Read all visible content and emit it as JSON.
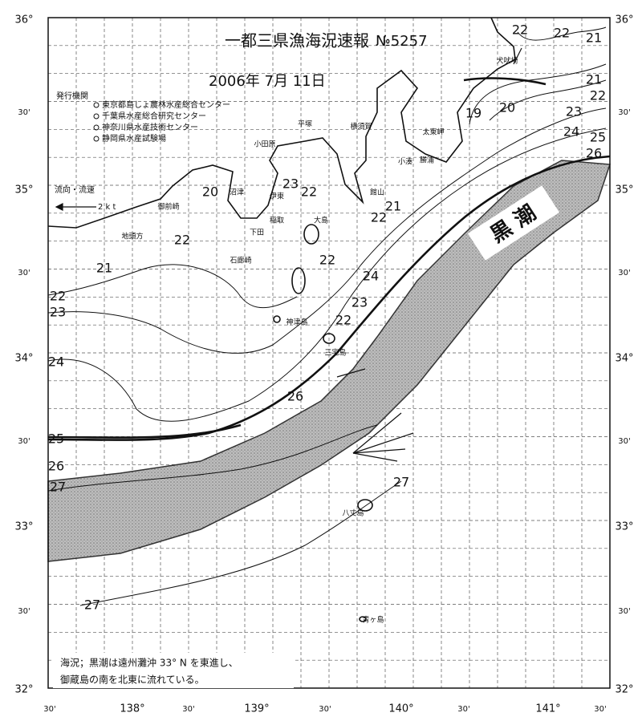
{
  "title": "一都三県漁海況速報",
  "issue_no": "№5257",
  "date": "2006年 7月 11日",
  "publisher": {
    "heading": "発行機関",
    "orgs": [
      "東京都島しょ農林水産総合センター",
      "千葉県水産総合研究センター",
      "神奈川県水産技術センター",
      "静岡県水産試験場"
    ]
  },
  "legend": {
    "label": "流向・流速",
    "speed": "2 k t"
  },
  "current_label": "黒 潮",
  "note": [
    "海況；黒潮は遠州灘沖 33° N を東進し、",
    "御蔵島の南を北東に流れている。"
  ],
  "lat_labels": [
    "36°",
    "30'",
    "35°",
    "30'",
    "34°",
    "30'",
    "33°",
    "30'",
    "32°"
  ],
  "lon_labels": [
    "30'",
    "138°",
    "30'",
    "139°",
    "30'",
    "140°",
    "30'",
    "141°",
    "30'"
  ],
  "contour_labels": [
    "22",
    "22",
    "21",
    "21",
    "22",
    "23",
    "24",
    "25",
    "26",
    "19",
    "20",
    "20",
    "23",
    "22",
    "21",
    "22",
    "22",
    "21",
    "22",
    "24",
    "22",
    "23",
    "23",
    "22",
    "24",
    "26",
    "25",
    "26",
    "27",
    "27",
    "27"
  ],
  "places": [
    "犬吠埼",
    "太東岬",
    "勝浦",
    "小湊",
    "館山",
    "平塚",
    "横須賀",
    "小田原",
    "伊東",
    "稲取",
    "下田",
    "石廊崎",
    "沼津",
    "御前崎",
    "地頭方",
    "大島",
    "神津島",
    "三宅島",
    "八丈島",
    "青ヶ島"
  ]
}
